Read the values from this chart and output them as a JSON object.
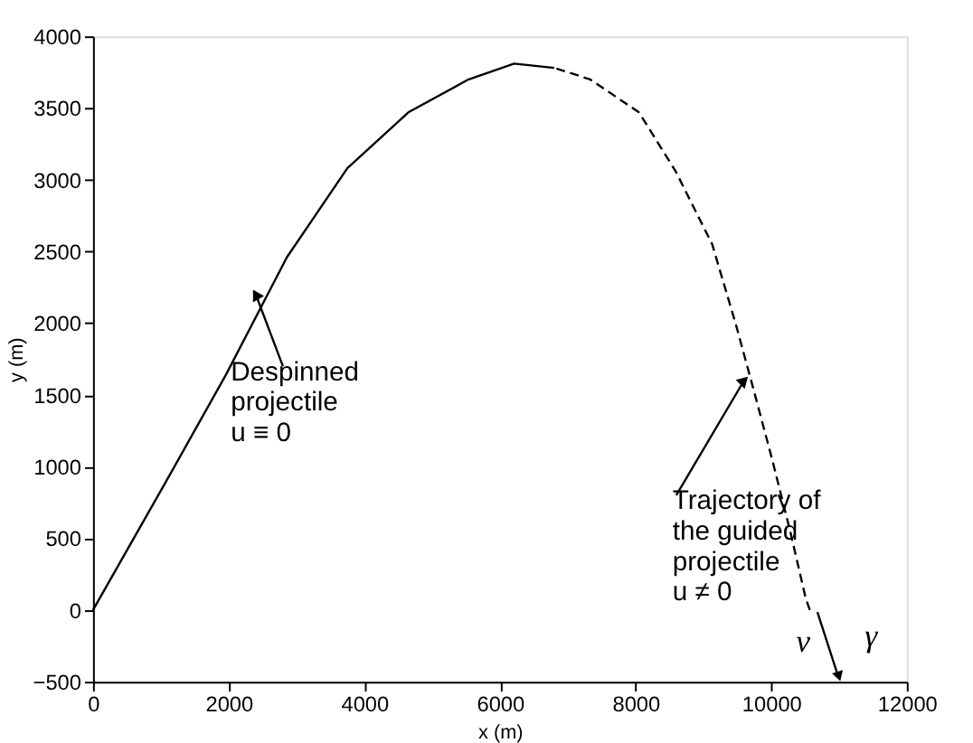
{
  "chart_data": {
    "type": "line",
    "xlabel": "x (m)",
    "ylabel": "y (m)",
    "xlim": [
      0,
      12000
    ],
    "xticks": [
      0,
      2000,
      4000,
      6000,
      8000,
      10000,
      12000
    ],
    "ylim": [
      -500,
      4000
    ],
    "yticks": [
      -500,
      0,
      500,
      1000,
      1500,
      2000,
      2500,
      3000,
      3500,
      4000
    ],
    "grid": false,
    "marker": "none",
    "series": [
      {
        "color": "#000000",
        "line_style": "solid",
        "x": [
          0,
          1070,
          1960,
          2860,
          3750,
          4650,
          5540,
          6210,
          6800
        ],
        "values": [
          0,
          890,
          1640,
          2460,
          3080,
          3470,
          3700,
          3810,
          3780
        ]
      },
      {
        "color": "#000000",
        "line_style": "dashed",
        "x": [
          6800,
          7330,
          8050,
          8590,
          9130,
          9480,
          9750,
          10020,
          10290,
          10510,
          10570
        ],
        "values": [
          3780,
          3700,
          3470,
          3060,
          2550,
          1990,
          1520,
          1040,
          530,
          80,
          0
        ]
      }
    ],
    "annotations": [
      {
        "text": "Despinned\nprojectile\nu ≡ 0",
        "x": 2400,
        "y": 2200
      },
      {
        "text": "Trajectory of\nthe guided\nprojectile\nu ≠ 0",
        "x": 9600,
        "y": 1600
      },
      "v",
      "γ"
    ]
  }
}
